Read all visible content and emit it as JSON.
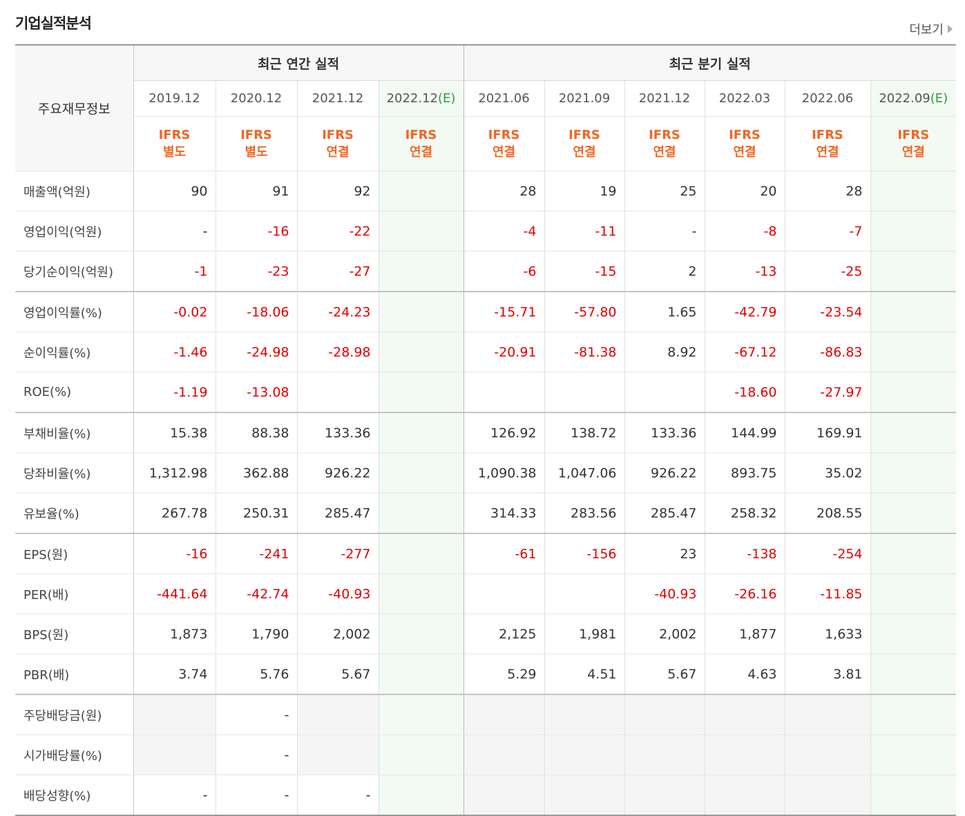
{
  "header": {
    "title": "기업실적분석",
    "more": "더보기"
  },
  "table": {
    "corner": "주요재무정보",
    "groups": [
      {
        "label": "최근 연간 실적",
        "columns": [
          {
            "date": "2019.12",
            "standard": [
              "IFRS",
              "별도"
            ]
          },
          {
            "date": "2020.12",
            "standard": [
              "IFRS",
              "별도"
            ]
          },
          {
            "date": "2021.12",
            "standard": [
              "IFRS",
              "연결"
            ]
          },
          {
            "date": "2022.12",
            "estimate": "(E)",
            "standard": [
              "IFRS",
              "연결"
            ]
          }
        ]
      },
      {
        "label": "최근 분기 실적",
        "columns": [
          {
            "date": "2021.06",
            "standard": [
              "IFRS",
              "연결"
            ]
          },
          {
            "date": "2021.09",
            "standard": [
              "IFRS",
              "연결"
            ]
          },
          {
            "date": "2021.12",
            "standard": [
              "IFRS",
              "연결"
            ]
          },
          {
            "date": "2022.03",
            "standard": [
              "IFRS",
              "연결"
            ]
          },
          {
            "date": "2022.06",
            "standard": [
              "IFRS",
              "연결"
            ]
          },
          {
            "date": "2022.09",
            "estimate": "(E)",
            "standard": [
              "IFRS",
              "연결"
            ]
          }
        ]
      }
    ],
    "sections": [
      {
        "rows": [
          {
            "label": "매출액(억원)",
            "values": [
              "90",
              "91",
              "92",
              null,
              "28",
              "19",
              "25",
              "20",
              "28",
              null
            ]
          },
          {
            "label": "영업이익(억원)",
            "values": [
              "-",
              "-16",
              "-22",
              null,
              "-4",
              "-11",
              "-",
              "-8",
              "-7",
              null
            ]
          },
          {
            "label": "당기순이익(억원)",
            "values": [
              "-1",
              "-23",
              "-27",
              null,
              "-6",
              "-15",
              "2",
              "-13",
              "-25",
              null
            ]
          }
        ]
      },
      {
        "rows": [
          {
            "label": "영업이익률(%)",
            "values": [
              "-0.02",
              "-18.06",
              "-24.23",
              null,
              "-15.71",
              "-57.80",
              "1.65",
              "-42.79",
              "-23.54",
              null
            ]
          },
          {
            "label": "순이익률(%)",
            "values": [
              "-1.46",
              "-24.98",
              "-28.98",
              null,
              "-20.91",
              "-81.38",
              "8.92",
              "-67.12",
              "-86.83",
              null
            ]
          },
          {
            "label": "ROE(%)",
            "values": [
              "-1.19",
              "-13.08",
              null,
              null,
              null,
              null,
              null,
              "-18.60",
              "-27.97",
              null
            ]
          }
        ]
      },
      {
        "rows": [
          {
            "label": "부채비율(%)",
            "values": [
              "15.38",
              "88.38",
              "133.36",
              null,
              "126.92",
              "138.72",
              "133.36",
              "144.99",
              "169.91",
              null
            ]
          },
          {
            "label": "당좌비율(%)",
            "values": [
              "1,312.98",
              "362.88",
              "926.22",
              null,
              "1,090.38",
              "1,047.06",
              "926.22",
              "893.75",
              "35.02",
              null
            ]
          },
          {
            "label": "유보율(%)",
            "values": [
              "267.78",
              "250.31",
              "285.47",
              null,
              "314.33",
              "283.56",
              "285.47",
              "258.32",
              "208.55",
              null
            ]
          }
        ]
      },
      {
        "rows": [
          {
            "label": "EPS(원)",
            "values": [
              "-16",
              "-241",
              "-277",
              null,
              "-61",
              "-156",
              "23",
              "-138",
              "-254",
              null
            ]
          },
          {
            "label": "PER(배)",
            "values": [
              "-441.64",
              "-42.74",
              "-40.93",
              null,
              null,
              null,
              "-40.93",
              "-26.16",
              "-11.85",
              null
            ]
          },
          {
            "label": "BPS(원)",
            "values": [
              "1,873",
              "1,790",
              "2,002",
              null,
              "2,125",
              "1,981",
              "2,002",
              "1,877",
              "1,633",
              null
            ]
          },
          {
            "label": "PBR(배)",
            "values": [
              "3.74",
              "5.76",
              "5.67",
              null,
              "5.29",
              "4.51",
              "5.67",
              "4.63",
              "3.81",
              null
            ]
          }
        ]
      },
      {
        "shaded": true,
        "rows": [
          {
            "label": "주당배당금(원)",
            "values": [
              null,
              "-",
              null,
              null,
              null,
              null,
              null,
              null,
              null,
              null
            ]
          },
          {
            "label": "시가배당률(%)",
            "values": [
              null,
              "-",
              null,
              null,
              null,
              null,
              null,
              null,
              null,
              null
            ]
          },
          {
            "label": "배당성향(%)",
            "values": [
              "-",
              "-",
              "-",
              null,
              null,
              null,
              null,
              null,
              null,
              null
            ]
          }
        ]
      }
    ]
  }
}
